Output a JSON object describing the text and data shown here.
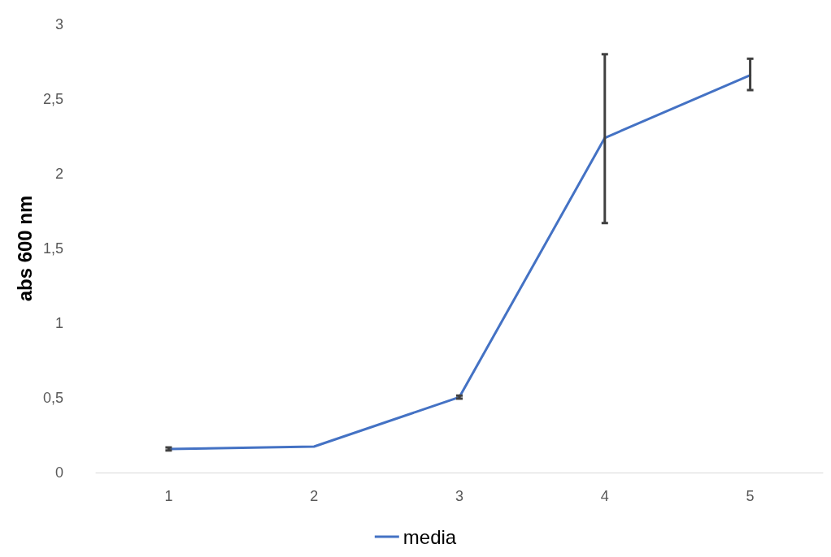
{
  "chart_data": {
    "type": "line",
    "ylabel": "abs 600 nm",
    "categories": [
      "1",
      "2",
      "3",
      "4",
      "5"
    ],
    "series": [
      {
        "name": "media",
        "color": "#4472c4",
        "values": [
          0.158,
          0.174,
          0.505,
          2.24,
          2.66
        ],
        "errors": [
          0.01,
          null,
          0.01,
          [
            1.67,
            2.8
          ],
          [
            2.56,
            2.77
          ]
        ]
      }
    ],
    "ylim": [
      0,
      3
    ],
    "yticks": [
      0,
      {
        "value": 0.5,
        "label": "0,5"
      },
      1,
      {
        "value": 1.5,
        "label": "1,5"
      },
      2,
      {
        "value": 2.5,
        "label": "2,5"
      },
      3
    ],
    "grid": false,
    "legend": "bottom",
    "marker": "none",
    "line_style": "solid"
  }
}
